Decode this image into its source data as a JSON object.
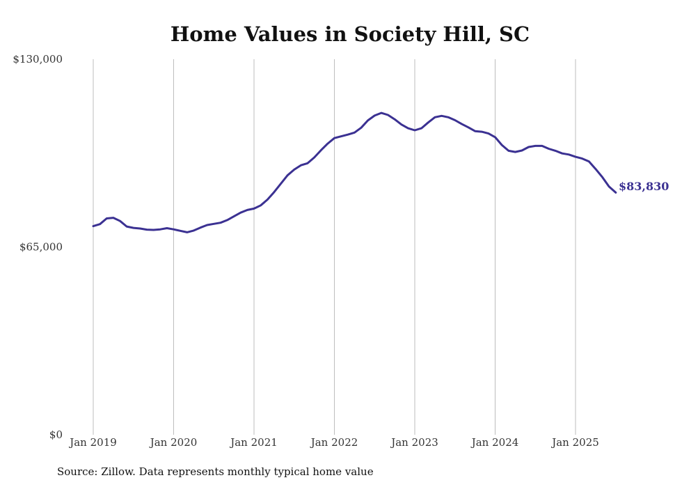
{
  "chart_data": {
    "type": "line",
    "title": "Home Values in Society Hill, SC",
    "xlabel": "",
    "ylabel": "",
    "ylim": [
      0,
      130000
    ],
    "yticks": [
      "$0",
      "$65,000",
      "$130,000"
    ],
    "xticks": [
      "Jan 2019",
      "Jan 2020",
      "Jan 2021",
      "Jan 2022",
      "Jan 2023",
      "Jan 2024",
      "Jan 2025"
    ],
    "grid": "vertical",
    "line_color": "#3b3192",
    "end_label": "$83,830",
    "series": [
      {
        "values": [
          {
            "x": "2019-01",
            "y": 72200
          },
          {
            "x": "2019-02",
            "y": 72900
          },
          {
            "x": "2019-03",
            "y": 74900
          },
          {
            "x": "2019-04",
            "y": 75100
          },
          {
            "x": "2019-05",
            "y": 74000
          },
          {
            "x": "2019-06",
            "y": 72100
          },
          {
            "x": "2019-07",
            "y": 71600
          },
          {
            "x": "2019-08",
            "y": 71400
          },
          {
            "x": "2019-09",
            "y": 71000
          },
          {
            "x": "2019-10",
            "y": 70900
          },
          {
            "x": "2019-11",
            "y": 71100
          },
          {
            "x": "2019-12",
            "y": 71500
          },
          {
            "x": "2020-01",
            "y": 71100
          },
          {
            "x": "2020-02",
            "y": 70600
          },
          {
            "x": "2020-03",
            "y": 70100
          },
          {
            "x": "2020-04",
            "y": 70700
          },
          {
            "x": "2020-05",
            "y": 71700
          },
          {
            "x": "2020-06",
            "y": 72600
          },
          {
            "x": "2020-07",
            "y": 73000
          },
          {
            "x": "2020-08",
            "y": 73400
          },
          {
            "x": "2020-09",
            "y": 74300
          },
          {
            "x": "2020-10",
            "y": 75600
          },
          {
            "x": "2020-11",
            "y": 76900
          },
          {
            "x": "2020-12",
            "y": 77800
          },
          {
            "x": "2021-01",
            "y": 78300
          },
          {
            "x": "2021-02",
            "y": 79400
          },
          {
            "x": "2021-03",
            "y": 81400
          },
          {
            "x": "2021-04",
            "y": 84000
          },
          {
            "x": "2021-05",
            "y": 86900
          },
          {
            "x": "2021-06",
            "y": 89800
          },
          {
            "x": "2021-07",
            "y": 91800
          },
          {
            "x": "2021-08",
            "y": 93300
          },
          {
            "x": "2021-09",
            "y": 94000
          },
          {
            "x": "2021-10",
            "y": 96000
          },
          {
            "x": "2021-11",
            "y": 98500
          },
          {
            "x": "2021-12",
            "y": 100800
          },
          {
            "x": "2022-01",
            "y": 102700
          },
          {
            "x": "2022-02",
            "y": 103300
          },
          {
            "x": "2022-03",
            "y": 103900
          },
          {
            "x": "2022-04",
            "y": 104600
          },
          {
            "x": "2022-05",
            "y": 106300
          },
          {
            "x": "2022-06",
            "y": 108800
          },
          {
            "x": "2022-07",
            "y": 110500
          },
          {
            "x": "2022-08",
            "y": 111400
          },
          {
            "x": "2022-09",
            "y": 110700
          },
          {
            "x": "2022-10",
            "y": 109200
          },
          {
            "x": "2022-11",
            "y": 107400
          },
          {
            "x": "2022-12",
            "y": 106100
          },
          {
            "x": "2023-01",
            "y": 105400
          },
          {
            "x": "2023-02",
            "y": 106100
          },
          {
            "x": "2023-03",
            "y": 108100
          },
          {
            "x": "2023-04",
            "y": 109900
          },
          {
            "x": "2023-05",
            "y": 110400
          },
          {
            "x": "2023-06",
            "y": 109900
          },
          {
            "x": "2023-07",
            "y": 108900
          },
          {
            "x": "2023-08",
            "y": 107600
          },
          {
            "x": "2023-09",
            "y": 106400
          },
          {
            "x": "2023-10",
            "y": 105100
          },
          {
            "x": "2023-11",
            "y": 104900
          },
          {
            "x": "2023-12",
            "y": 104300
          },
          {
            "x": "2024-01",
            "y": 103000
          },
          {
            "x": "2024-02",
            "y": 100300
          },
          {
            "x": "2024-03",
            "y": 98300
          },
          {
            "x": "2024-04",
            "y": 97900
          },
          {
            "x": "2024-05",
            "y": 98400
          },
          {
            "x": "2024-06",
            "y": 99600
          },
          {
            "x": "2024-07",
            "y": 100000
          },
          {
            "x": "2024-08",
            "y": 100000
          },
          {
            "x": "2024-09",
            "y": 99000
          },
          {
            "x": "2024-10",
            "y": 98300
          },
          {
            "x": "2024-11",
            "y": 97400
          },
          {
            "x": "2024-12",
            "y": 97000
          },
          {
            "x": "2025-01",
            "y": 96200
          },
          {
            "x": "2025-02",
            "y": 95600
          },
          {
            "x": "2025-03",
            "y": 94600
          },
          {
            "x": "2025-04",
            "y": 92000
          },
          {
            "x": "2025-05",
            "y": 89200
          },
          {
            "x": "2025-06",
            "y": 85900
          },
          {
            "x": "2025-07",
            "y": 83830
          }
        ]
      }
    ]
  },
  "source": "Source: Zillow. Data represents monthly typical home value"
}
